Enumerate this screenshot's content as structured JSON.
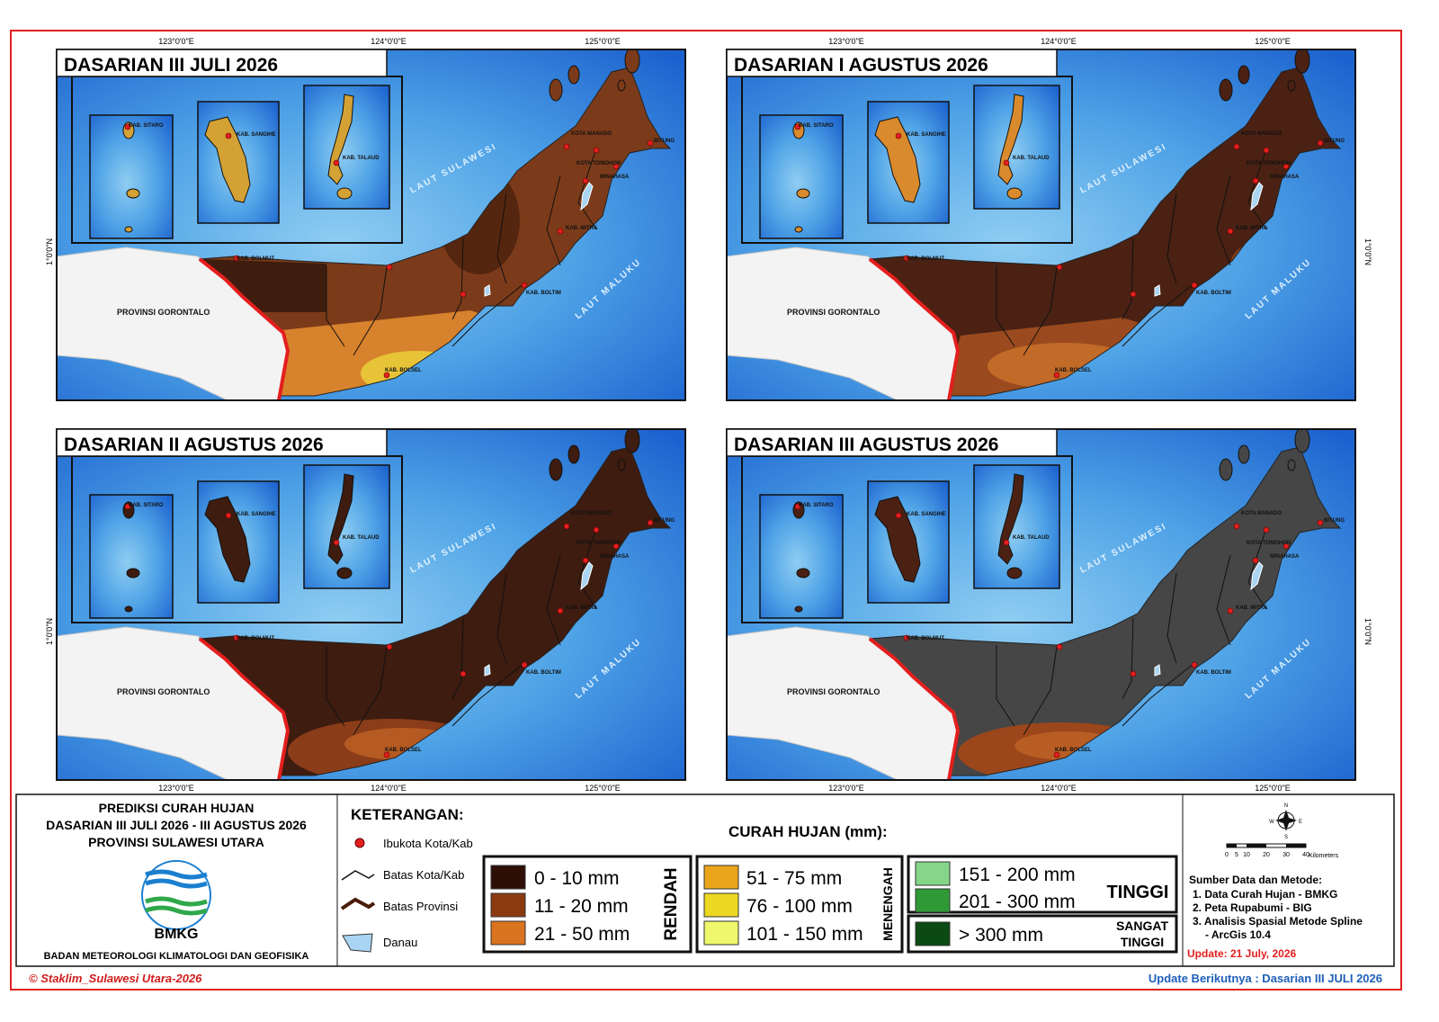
{
  "maps": [
    {
      "title": "DASARIAN III JULI 2026"
    },
    {
      "title": "DASARIAN I AGUSTUS 2026"
    },
    {
      "title": "DASARIAN II AGUSTUS 2026"
    },
    {
      "title": "DASARIAN III AGUSTUS 2026"
    }
  ],
  "axes": {
    "lon": [
      "123°0'0\"E",
      "124°0'0\"E",
      "125°0'0\"E"
    ],
    "lat": "1°0'0\"N"
  },
  "place_labels": {
    "gorontalo": "PROVINSI GORONTALO",
    "laut_sulawesi": "LAUT SULAWESI",
    "laut_maluku": "LAUT MALUKU",
    "bolmut": "KAB. BOLMUT",
    "boltim": "KAB. BOLTIM",
    "bolsel": "KAB. BOLSEL",
    "manado": "KOTA MANADO",
    "bitung": "BITUNG",
    "minahasa": "MINAHASA",
    "tomohon": "KOTA TOMOHON",
    "mitra": "KAB. MITRA",
    "sitaro": "KAB. SITARO",
    "sangihe": "KAB. SANGIHE",
    "talaud": "KAB. TALAUD"
  },
  "info": {
    "title": [
      "PREDIKSI CURAH HUJAN",
      "DASARIAN III JULI 2026 - III AGUSTUS 2026",
      "PROVINSI SULAWESI UTARA"
    ],
    "logo_text": "BMKG",
    "agency": "BADAN METEOROLOGI KLIMATOLOGI DAN GEOFISIKA"
  },
  "legend": {
    "heading": "KETERANGAN:",
    "symbols": [
      "Ibukota Kota/Kab",
      "Batas Kota/Kab",
      "Batas Provinsi",
      "Danau"
    ],
    "rain_title": "CURAH HUJAN (mm):",
    "groups": [
      {
        "name": [
          "RENDAH"
        ],
        "classes": [
          {
            "label": "0 - 10 mm",
            "color": "#2e0f06"
          },
          {
            "label": "11 - 20 mm",
            "color": "#8b3a10"
          },
          {
            "label": "21 - 50 mm",
            "color": "#d9731f"
          }
        ]
      },
      {
        "name": [
          "MENENGAH"
        ],
        "classes": [
          {
            "label": "51 - 75 mm",
            "color": "#eba51a"
          },
          {
            "label": "76 - 100 mm",
            "color": "#ecd820"
          },
          {
            "label": "101 - 150 mm",
            "color": "#eef86a"
          }
        ]
      },
      {
        "name": [
          "TINGGI"
        ],
        "classes": [
          {
            "label": "151 - 200 mm",
            "color": "#86d68a"
          },
          {
            "label": "201 - 300 mm",
            "color": "#2f9a35"
          }
        ]
      },
      {
        "name": [
          "SANGAT",
          "TINGGI"
        ],
        "classes": [
          {
            "label": "> 300 mm",
            "color": "#0b4a12"
          }
        ]
      }
    ]
  },
  "compass": [
    "N",
    "E",
    "S",
    "W"
  ],
  "scale": {
    "ticks": [
      "0",
      "5",
      "10",
      "20",
      "30",
      "40"
    ],
    "unit": "Kilometers"
  },
  "sources": {
    "heading": "Sumber Data dan Metode:",
    "items": [
      "1. Data Curah Hujan - BMKG",
      "2. Peta Rupabumi - BIG",
      "3. Analisis Spasial Metode Spline",
      "- ArcGis 10.4"
    ]
  },
  "update": "Update: 21 July, 2026",
  "footer": {
    "copyright": "© Staklim_Sulawesi Utara-2026",
    "next": "Update Berikutnya : Dasarian III JULI 2026"
  }
}
